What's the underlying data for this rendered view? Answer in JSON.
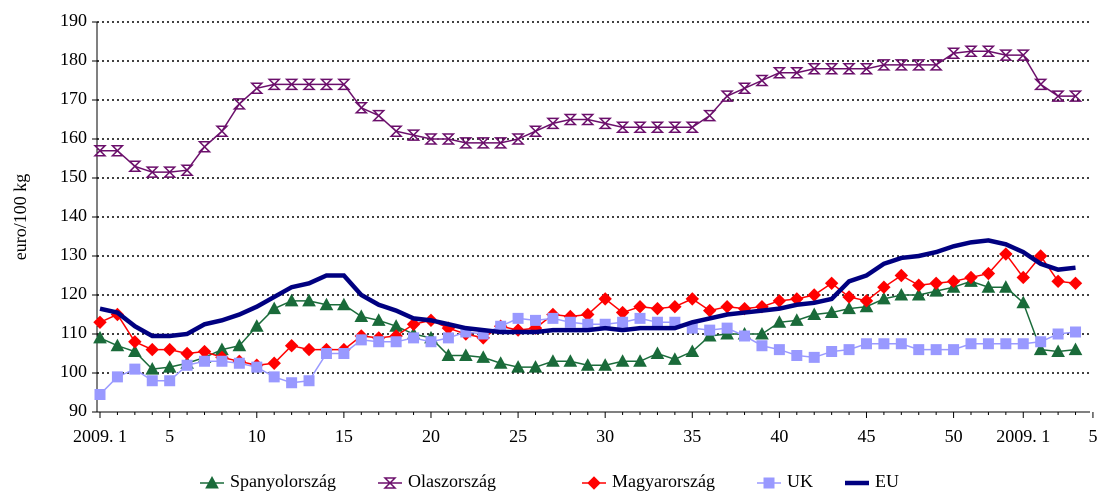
{
  "chart_data": {
    "type": "line",
    "y_label": "euro/100 kg",
    "categories": [
      "2009. 1",
      null,
      null,
      null,
      "5",
      null,
      null,
      null,
      null,
      "10",
      null,
      null,
      null,
      null,
      "15",
      null,
      null,
      null,
      null,
      "20",
      null,
      null,
      null,
      null,
      "25",
      null,
      null,
      null,
      null,
      "30",
      null,
      null,
      null,
      null,
      "35",
      null,
      null,
      null,
      null,
      "40",
      null,
      null,
      null,
      null,
      "45",
      null,
      null,
      null,
      null,
      "50",
      null,
      null,
      null,
      "2009. 1",
      null,
      null,
      null,
      "5"
    ],
    "ylim": [
      90,
      190
    ],
    "yticks": [
      90,
      100,
      110,
      120,
      130,
      140,
      150,
      160,
      170,
      180,
      190
    ],
    "grid": true,
    "legend": "bottom",
    "series": [
      {
        "name": "Spanyolország",
        "color": "#1a6b3a",
        "marker": "triangle",
        "values": [
          109,
          107,
          105.5,
          101,
          101.5,
          102.5,
          104,
          106,
          107,
          112,
          116.5,
          118.5,
          118.5,
          117.5,
          117.5,
          114.5,
          113.5,
          112,
          110,
          109,
          104.5,
          104.5,
          104,
          102.5,
          101.5,
          101.5,
          103,
          103,
          102,
          102,
          103,
          103,
          105,
          103.5,
          105.5,
          109.5,
          110,
          110,
          110,
          113,
          113.5,
          115,
          115.5,
          116.5,
          117,
          119,
          120,
          120,
          121,
          122,
          123.5,
          122,
          122,
          118,
          106,
          105.5,
          106,
          null
        ]
      },
      {
        "name": "Olaszország",
        "color": "#6b0f6b",
        "marker": "hourglass",
        "values": [
          157,
          157,
          153,
          151.5,
          151.5,
          152,
          158,
          162,
          169,
          173,
          174,
          174,
          174,
          174,
          174,
          168,
          166,
          162,
          161,
          160,
          160,
          159,
          159,
          159,
          160,
          162,
          164,
          165,
          165,
          164,
          163,
          163,
          163,
          163,
          163,
          166,
          171,
          173,
          175,
          177,
          177,
          178,
          178,
          178,
          178,
          179,
          179,
          179,
          179,
          182,
          182.5,
          182.5,
          181.5,
          181.5,
          174,
          171,
          171,
          null
        ]
      },
      {
        "name": "Magyarország",
        "color": "#ff0000",
        "marker": "diamond",
        "values": [
          113,
          115,
          108,
          106,
          106,
          105,
          105.5,
          104,
          103,
          102,
          102.5,
          107,
          106,
          106,
          106,
          109.5,
          109,
          109.5,
          112.5,
          113.5,
          111.5,
          110,
          109,
          112,
          111,
          111.5,
          115,
          114.5,
          115,
          119,
          115.5,
          117,
          116.5,
          117,
          119,
          116,
          117,
          116.5,
          117,
          118.5,
          119,
          120,
          123,
          119.5,
          118.5,
          122,
          125,
          122.5,
          123,
          123.5,
          124.5,
          125.5,
          130.5,
          124.5,
          130,
          123.5,
          123,
          null
        ]
      },
      {
        "name": "UK",
        "color": "#9999ff",
        "marker": "square",
        "values": [
          94.5,
          99,
          101,
          98,
          98,
          102,
          103,
          103,
          102.5,
          101.5,
          99,
          97.5,
          98,
          105,
          105,
          108.5,
          108,
          108,
          109,
          108,
          109,
          110.5,
          110,
          112,
          114,
          113.5,
          114,
          113,
          112.5,
          112.5,
          113,
          114,
          113,
          113,
          111.5,
          111,
          111.5,
          109.5,
          107,
          106,
          104.5,
          104,
          105.5,
          106,
          107.5,
          107.5,
          107.5,
          106,
          106,
          106,
          107.5,
          107.5,
          107.5,
          107.5,
          108,
          110,
          110.5,
          null
        ]
      },
      {
        "name": "EU",
        "color": "#000080",
        "marker": "none",
        "values": [
          116.5,
          115.5,
          112,
          109.5,
          109.5,
          110,
          112.5,
          113.5,
          115,
          117,
          119.5,
          122,
          123,
          125,
          125,
          120,
          117.5,
          116,
          114,
          113.5,
          112.5,
          111.5,
          111,
          110.5,
          110.5,
          110.5,
          111,
          111,
          111,
          111.5,
          111,
          111.5,
          111.5,
          111.5,
          113,
          114,
          115,
          115.5,
          116,
          116.5,
          117.5,
          118,
          119,
          123.5,
          125,
          128,
          129.5,
          130,
          131,
          132.5,
          133.5,
          134,
          133,
          131,
          128,
          126.5,
          127,
          null
        ]
      }
    ]
  }
}
